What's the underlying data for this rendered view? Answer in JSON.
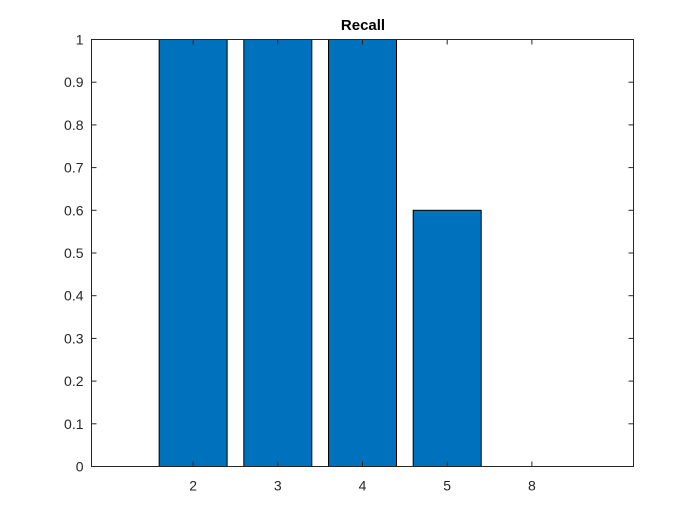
{
  "chart_data": {
    "type": "bar",
    "title": "Recall",
    "xlabel": "",
    "ylabel": "",
    "categories": [
      "2",
      "3",
      "4",
      "5",
      "8"
    ],
    "values": [
      1,
      1,
      1,
      0.6,
      0
    ],
    "ylim": [
      0,
      1
    ],
    "yticks": [
      0,
      0.1,
      0.2,
      0.3,
      0.4,
      0.5,
      0.6,
      0.7,
      0.8,
      0.9,
      1
    ],
    "ytick_labels": [
      "0",
      "0.1",
      "0.2",
      "0.3",
      "0.4",
      "0.5",
      "0.6",
      "0.7",
      "0.8",
      "0.9",
      "1"
    ],
    "grid": false,
    "legend": "none",
    "bar_color": "#0072BD",
    "bar_edge_color": "#000000"
  }
}
